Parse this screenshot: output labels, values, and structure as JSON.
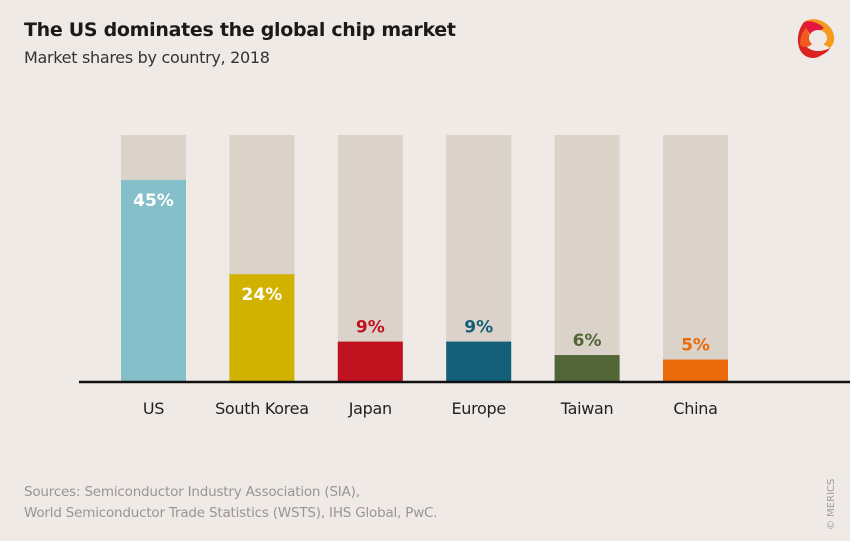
{
  "header": {
    "title": "The US dominates the global chip market",
    "subtitle": "Market shares by country, 2018"
  },
  "logo": {
    "name": "MERICS"
  },
  "chart_data": {
    "type": "bar",
    "title": "The US dominates the global chip market",
    "subtitle": "Market shares by country, 2018",
    "xlabel": "",
    "ylabel": "",
    "ylim": [
      0,
      55
    ],
    "grid": false,
    "categories": [
      "US",
      "South Korea",
      "Japan",
      "Europe",
      "Taiwan",
      "China"
    ],
    "values": [
      45,
      24,
      9,
      9,
      6,
      5
    ],
    "labels": [
      "45%",
      "24%",
      "9%",
      "9%",
      "6%",
      "5%"
    ],
    "colors": [
      "#84bfca",
      "#d2b200",
      "#c0111f",
      "#135e78",
      "#526537",
      "#ea6a0c"
    ],
    "label_colors": [
      "#ffffff",
      "#ffffff",
      "#c0111f",
      "#135e78",
      "#526537",
      "#ea6a0c"
    ],
    "background_bar_color": "#dbd3ca"
  },
  "footer": {
    "sources_line1": "Sources: Semiconductor Industry Association (SIA),",
    "sources_line2": "World Semiconductor Trade Statistics (WSTS), IHS Global, PwC.",
    "copyright": "© MERICS"
  }
}
